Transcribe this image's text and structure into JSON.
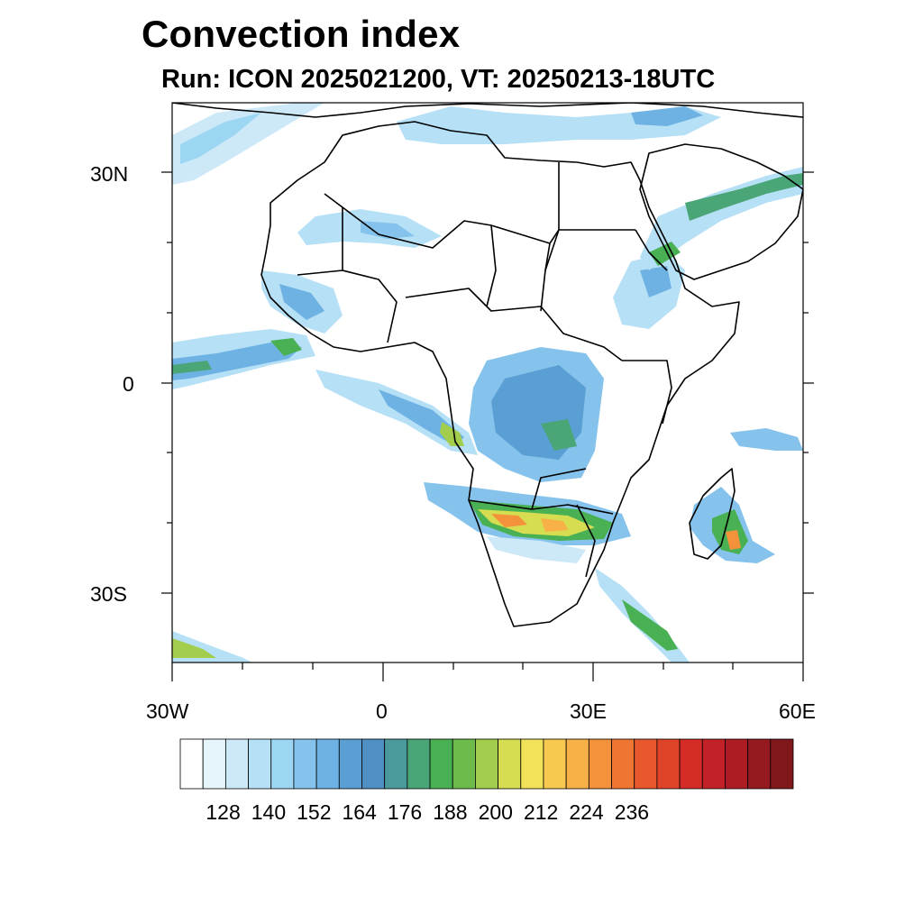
{
  "title": "Convection index",
  "subtitle": "Run: ICON 2025021200,  VT: 20250213-18UTC",
  "axes": {
    "lat_labels": [
      "30N",
      "0",
      "30S"
    ],
    "lon_labels": [
      "30W",
      "0",
      "30E",
      "60E"
    ]
  },
  "chart_data": {
    "type": "heatmap",
    "title": "Convection index",
    "subtitle": "Run: ICON 2025021200,  VT: 20250213-18UTC",
    "field": "convection index",
    "run": "ICON 2025021200",
    "valid_time": "20250213-18UTC",
    "lon_range": [
      -30,
      60
    ],
    "lat_range": [
      -40,
      40
    ],
    "lon_ticks": [
      -30,
      0,
      30,
      60
    ],
    "lat_ticks": [
      30,
      0,
      -30
    ],
    "colorbar": {
      "labels": [
        "128",
        "140",
        "152",
        "164",
        "176",
        "188",
        "200",
        "212",
        "224",
        "236"
      ],
      "colors": [
        "#ffffff",
        "#e6f4fb",
        "#cde9f8",
        "#b6e0f6",
        "#9dd6f3",
        "#85c3ec",
        "#6eb2e4",
        "#5a9fd4",
        "#4f8fc4",
        "#4a9a9c",
        "#4aa577",
        "#49b054",
        "#6dbb4a",
        "#a3cd4c",
        "#d6dd50",
        "#f2e25a",
        "#f7c94f",
        "#f8b146",
        "#f4923c",
        "#ef7533",
        "#e8582d",
        "#df4428",
        "#d42d27",
        "#c22127",
        "#ad1b24",
        "#951a1f",
        "#7f171b"
      ]
    }
  }
}
